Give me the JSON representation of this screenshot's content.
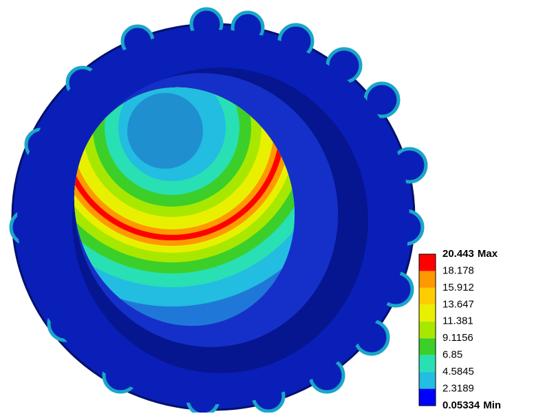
{
  "legend": {
    "levels": [
      "20.443",
      "18.178",
      "15.912",
      "13.647",
      "11.381",
      "9.1156",
      "6.85",
      "4.5845",
      "2.3189",
      "0.05334"
    ],
    "max_label": "Max",
    "min_label": "Min",
    "band_colors": [
      "#ff0000",
      "#ff9900",
      "#ffcc00",
      "#e8f000",
      "#a8e800",
      "#3ccf2a",
      "#28e0b4",
      "#22bde0",
      "#0000ff"
    ]
  }
}
